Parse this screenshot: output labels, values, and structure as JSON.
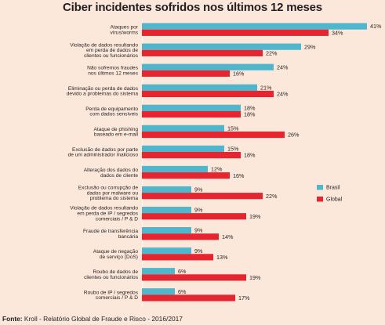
{
  "chart_data": {
    "type": "bar",
    "orientation": "horizontal",
    "title": "Ciber incidentes sofridos nos últimos 12 meses",
    "categories": [
      "Ataques por|vírus/worms",
      "Violação de dados resultando|em perda de dados de|clientes ou funcionários",
      "Não sofremos fraudes|nos últimos 12 meses",
      "Eliminação ou perda de dados|devido a problemas do sistema",
      "Perda de equipamento|com dados sensíveis",
      "Ataque de phishing|baseado em e-mail",
      "Exclusão de dados por parte|de um administrador malicioso",
      "Alteração dos dados do|dados de cliente",
      "Exclusão ou corrupção de|dados por malware ou|problema do sistema",
      "Violação de dados resultando|em perda de IP / segredos|comerciais / P & D",
      "Fraude de transferência|bancária",
      "Ataque de negação|de serviço (DoS)",
      "Roubo de dados de|clientes ou funcionários",
      "Roubo de IP / segredos|comerciais / P & D"
    ],
    "series": [
      {
        "name": "Brasil",
        "color": "#4fb6cc",
        "values": [
          41,
          29,
          24,
          21,
          18,
          15,
          15,
          12,
          9,
          9,
          9,
          9,
          6,
          6
        ]
      },
      {
        "name": "Global",
        "color": "#e52630",
        "values": [
          34,
          22,
          16,
          24,
          18,
          26,
          18,
          16,
          22,
          19,
          14,
          13,
          19,
          17
        ]
      }
    ],
    "value_suffix": "%",
    "xlim": [
      0,
      41
    ],
    "grid": false,
    "legend_position": "right"
  },
  "footer": {
    "source_label": "Fonte:",
    "source_text": "Kroll - Relatório Global de Fraude e Risco - 2016/2017"
  }
}
